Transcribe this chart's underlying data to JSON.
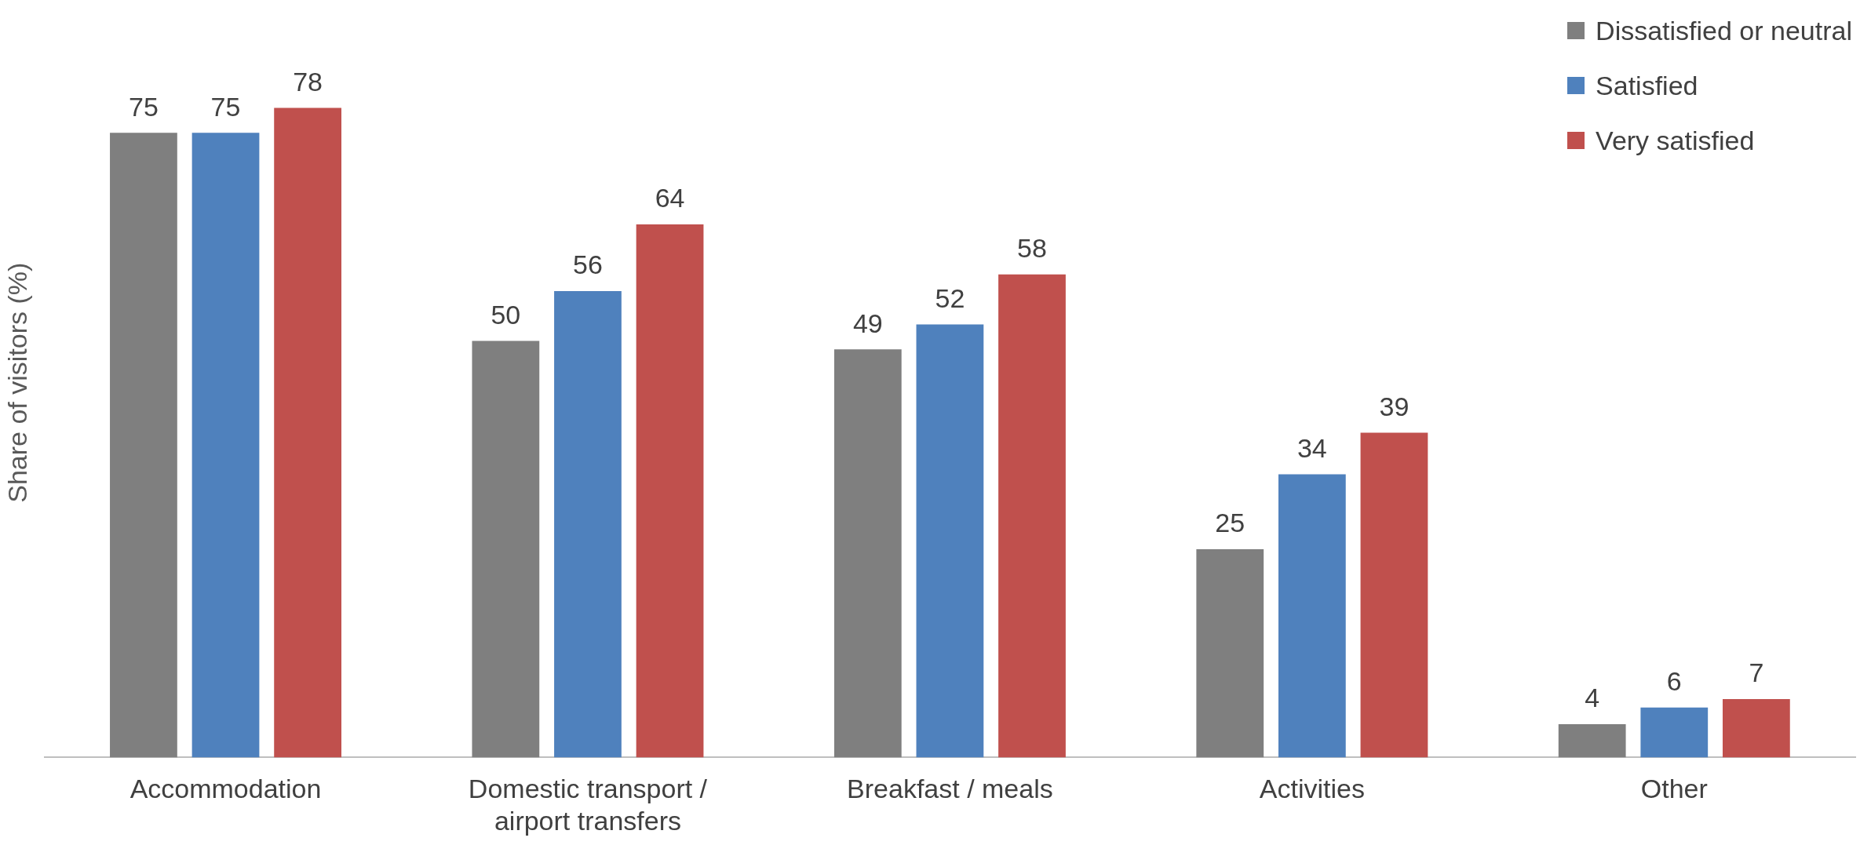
{
  "chart_data": {
    "type": "bar",
    "ylabel": "Share of visitors (%)",
    "categories": [
      "Accommodation",
      "Domestic transport / airport transfers",
      "Breakfast / meals",
      "Activities",
      "Other"
    ],
    "series": [
      {
        "name": "Dissatisfied or neutral",
        "color": "#7f7f7f",
        "values": [
          75,
          50,
          49,
          25,
          4
        ]
      },
      {
        "name": "Satisfied",
        "color": "#4f81bd",
        "values": [
          75,
          56,
          52,
          34,
          6
        ]
      },
      {
        "name": "Very satisfied",
        "color": "#c0504d",
        "values": [
          78,
          64,
          58,
          39,
          7
        ]
      }
    ],
    "data_labels": true,
    "legend": "top right",
    "grid": false
  }
}
